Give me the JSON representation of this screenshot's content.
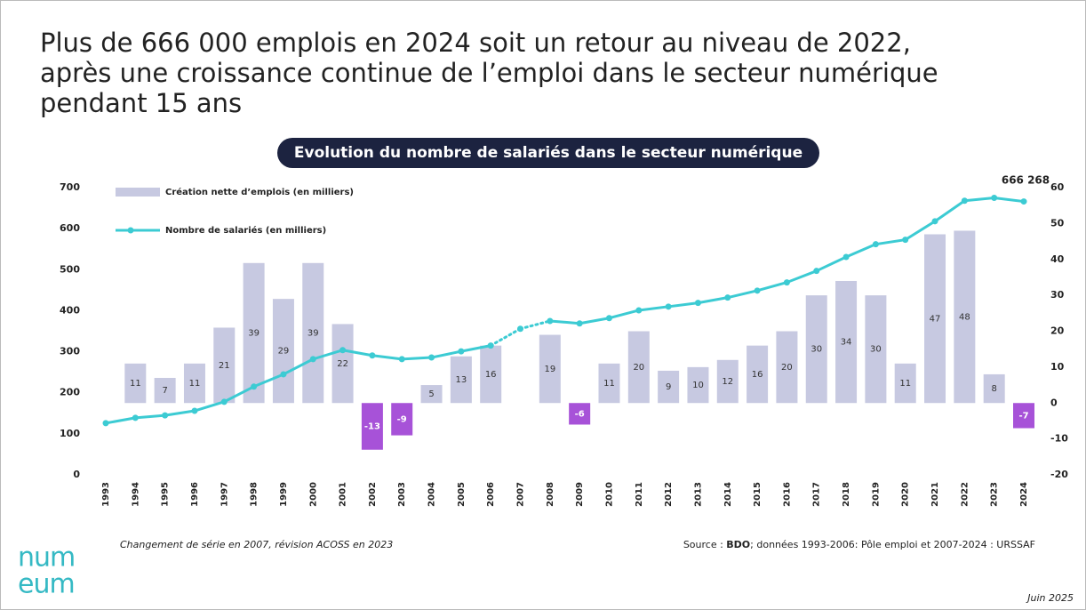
{
  "title_lines": [
    "Plus de 666 000 emplois en 2024 soit un retour au niveau de 2022,",
    "après une croissance continue de l’emploi dans le secteur numérique",
    "pendant 15 ans"
  ],
  "chart_data": {
    "type": "bar-line",
    "title": "Evolution du nombre de salariés dans le secteur numérique",
    "categories": [
      "1993",
      "1994",
      "1995",
      "1996",
      "1997",
      "1998",
      "1999",
      "2000",
      "2001",
      "2002",
      "2003",
      "2004",
      "2005",
      "2006",
      "2007",
      "2008",
      "2009",
      "2010",
      "2011",
      "2012",
      "2013",
      "2014",
      "2015",
      "2016",
      "2017",
      "2018",
      "2019",
      "2020",
      "2021",
      "2022",
      "2023",
      "2024"
    ],
    "series": [
      {
        "name": "Création nette d’emplois (en milliers)",
        "type": "bar",
        "axis": "y2",
        "color": "#c7c9e1",
        "negative_color": "#a752d8",
        "values": [
          null,
          11,
          7,
          11,
          21,
          39,
          29,
          39,
          22,
          -13,
          -9,
          5,
          13,
          16,
          null,
          19,
          -6,
          11,
          20,
          9,
          10,
          12,
          16,
          20,
          30,
          34,
          30,
          11,
          47,
          48,
          8,
          -7
        ]
      },
      {
        "name": "Nombre de salariés (en milliers)",
        "type": "line",
        "axis": "y",
        "color": "#3ccbd3",
        "values": [
          126,
          139,
          145,
          156,
          178,
          215,
          245,
          282,
          304,
          291,
          282,
          286,
          301,
          315,
          356,
          375,
          369,
          382,
          401,
          410,
          419,
          432,
          449,
          469,
          497,
          531,
          562,
          573,
          618,
          668,
          675,
          666.268
        ],
        "dashed_range": [
          "2006",
          "2008"
        ]
      }
    ],
    "annotation": {
      "text": "666 268",
      "category": "2024"
    },
    "ylim": [
      0,
      700
    ],
    "yticks": [
      0,
      100,
      200,
      300,
      400,
      500,
      600,
      700
    ],
    "y2lim": [
      -20,
      60
    ],
    "y2ticks": [
      -20,
      -10,
      0,
      10,
      20,
      30,
      40,
      50,
      60
    ],
    "grid": false
  },
  "note": "Changement de série en 2007, révision ACOSS en 2023",
  "source": [
    "Source : ",
    "BDO",
    "; données 1993-2006: Pôle emploi et 2007-2024 : URSSAF"
  ],
  "date": "Juin 2025",
  "logo": [
    "num",
    "eum"
  ]
}
